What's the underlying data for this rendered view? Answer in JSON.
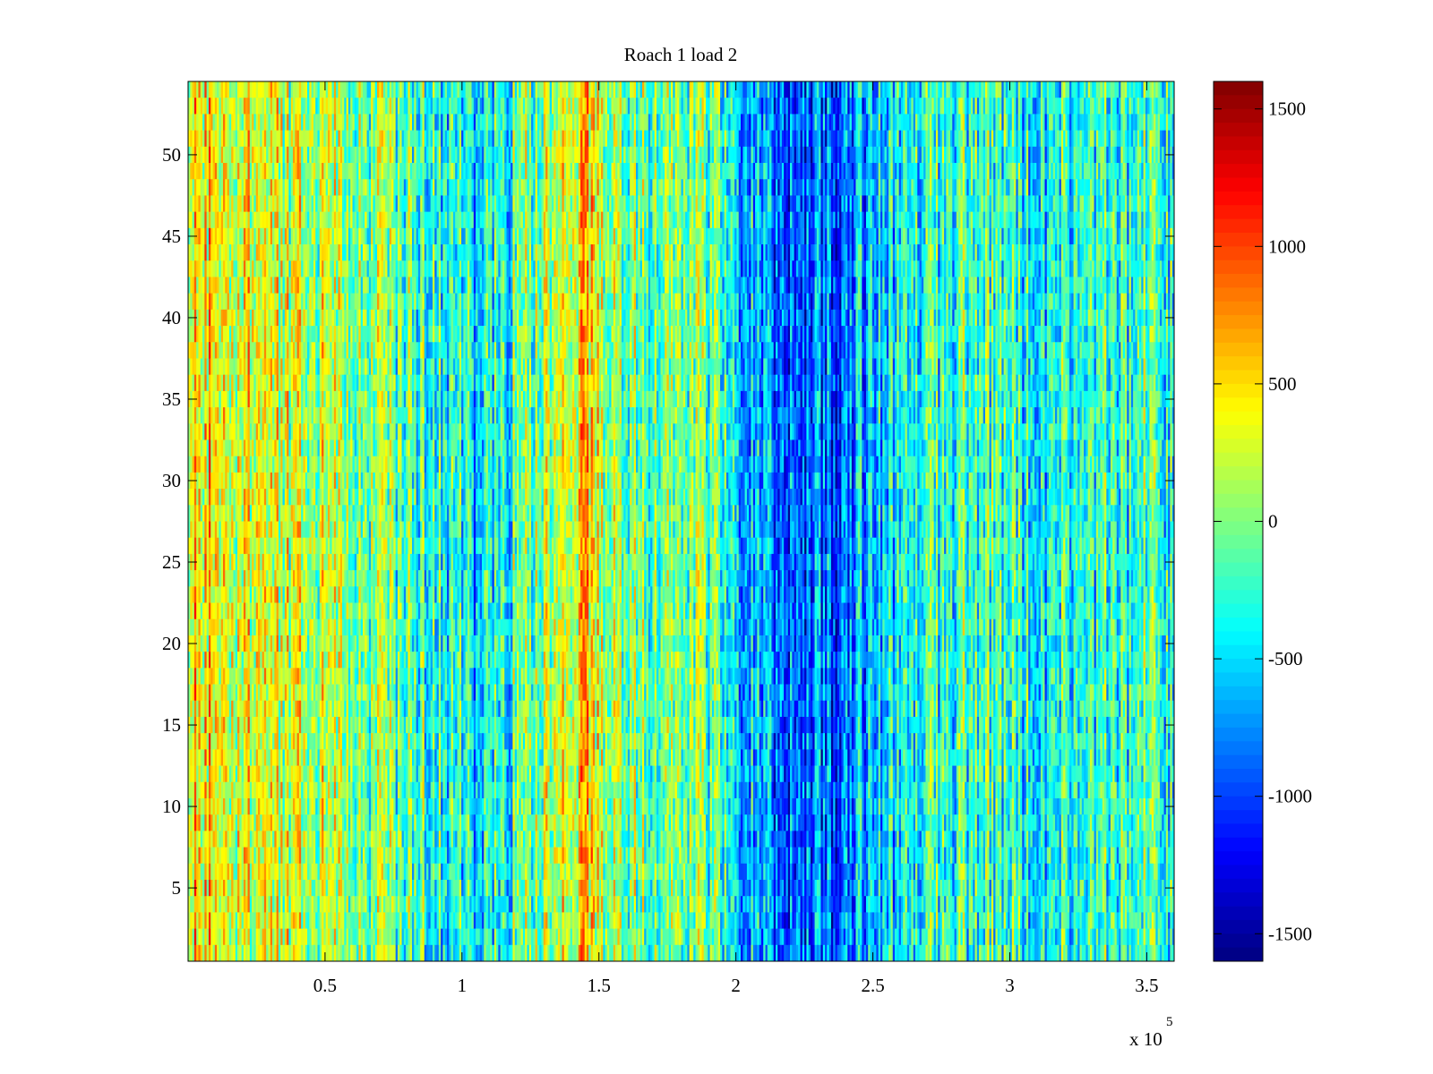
{
  "chart_data": {
    "type": "heatmap",
    "title": "Roach 1 load 2",
    "xlabel": "",
    "ylabel": "",
    "x_exponent_label": "x 10",
    "x_exponent": "5",
    "xlim": [
      0,
      3.6
    ],
    "ylim": [
      0.5,
      54.5
    ],
    "x_ticks": [
      0.5,
      1,
      1.5,
      2,
      2.5,
      3,
      3.5
    ],
    "x_tick_labels": [
      "0.5",
      "1",
      "1.5",
      "2",
      "2.5",
      "3",
      "3.5"
    ],
    "y_ticks": [
      5,
      10,
      15,
      20,
      25,
      30,
      35,
      40,
      45,
      50
    ],
    "y_tick_labels": [
      "5",
      "10",
      "15",
      "20",
      "25",
      "30",
      "35",
      "40",
      "45",
      "50"
    ],
    "rows": 54,
    "colormap": "jet",
    "clim": [
      -1600,
      1600
    ],
    "colorbar_ticks": [
      1500,
      1000,
      500,
      0,
      -500,
      -1000,
      -1500
    ],
    "colorbar_tick_labels": [
      "1500",
      "1000",
      "500",
      "0",
      "-500",
      "-1000",
      "-1500"
    ],
    "column_profile": {
      "x": [
        0.0,
        0.05,
        0.1,
        0.2,
        0.3,
        0.45,
        0.6,
        0.75,
        0.9,
        1.0,
        1.07,
        1.12,
        1.2,
        1.3,
        1.4,
        1.45,
        1.5,
        1.6,
        1.7,
        1.8,
        1.9,
        2.0,
        2.1,
        2.2,
        2.3,
        2.37,
        2.45,
        2.55,
        2.7,
        2.85,
        3.0,
        3.1,
        3.2,
        3.3,
        3.4,
        3.5,
        3.6
      ],
      "mean_value": [
        550,
        450,
        400,
        350,
        250,
        200,
        80,
        -100,
        -250,
        -350,
        -550,
        -400,
        -150,
        50,
        300,
        450,
        200,
        -50,
        0,
        50,
        -150,
        -400,
        -750,
        -900,
        -800,
        -900,
        -650,
        -500,
        -300,
        -200,
        -250,
        -450,
        -350,
        -300,
        -250,
        -200,
        -250
      ]
    }
  }
}
